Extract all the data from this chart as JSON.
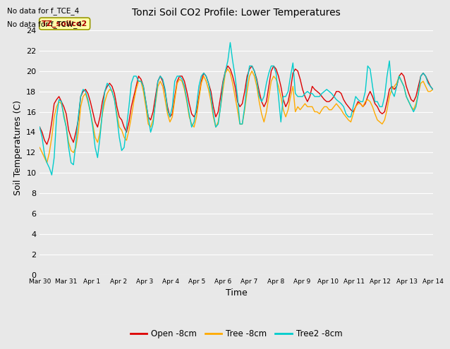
{
  "title": "Tonzi Soil CO2 Profile: Lower Temperatures",
  "xlabel": "Time",
  "ylabel": "Soil Temperatures (C)",
  "corner_label": "TZ_soilco2",
  "top_left_text": [
    "No data for f_TCE_4",
    "No data for f_TCW_4"
  ],
  "ylim": [
    0,
    25
  ],
  "yticks": [
    0,
    2,
    4,
    6,
    8,
    10,
    12,
    14,
    16,
    18,
    20,
    22,
    24
  ],
  "xtick_labels": [
    "Mar 30",
    "Mar 31",
    "Apr 1",
    "Apr 2",
    "Apr 3",
    "Apr 4",
    "Apr 5",
    "Apr 6",
    "Apr 7",
    "Apr 8",
    "Apr 9",
    "Apr 10",
    "Apr 11",
    "Apr 12",
    "Apr 13",
    "Apr 14"
  ],
  "bg_color": "#e8e8e8",
  "fig_color": "#e8e8e8",
  "grid_color": "#ffffff",
  "line_colors": {
    "open": "#dd0000",
    "tree": "#ffaa00",
    "tree2": "#00cccc"
  },
  "legend_labels": [
    "Open -8cm",
    "Tree -8cm",
    "Tree2 -8cm"
  ],
  "open_data": [
    14.5,
    14.0,
    13.2,
    12.8,
    13.5,
    15.0,
    16.8,
    17.2,
    17.5,
    17.0,
    16.5,
    15.8,
    14.2,
    13.5,
    13.0,
    14.0,
    15.2,
    17.5,
    18.0,
    18.2,
    17.8,
    17.0,
    16.0,
    15.0,
    14.5,
    15.5,
    17.0,
    18.0,
    18.5,
    18.8,
    18.5,
    17.8,
    16.5,
    15.5,
    15.2,
    14.5,
    14.0,
    15.0,
    16.5,
    17.5,
    18.5,
    19.5,
    19.2,
    18.5,
    17.0,
    15.5,
    15.2,
    16.0,
    17.5,
    19.0,
    19.5,
    19.0,
    18.0,
    16.5,
    15.5,
    15.8,
    17.5,
    19.0,
    19.5,
    19.5,
    19.0,
    18.0,
    16.8,
    15.8,
    15.5,
    16.0,
    17.5,
    19.0,
    19.8,
    19.5,
    18.8,
    18.0,
    16.5,
    15.5,
    16.0,
    17.5,
    19.0,
    20.0,
    20.5,
    20.2,
    19.5,
    18.5,
    17.0,
    16.5,
    16.8,
    18.0,
    19.5,
    20.2,
    20.5,
    20.0,
    19.2,
    18.0,
    17.0,
    16.5,
    17.0,
    18.5,
    20.0,
    20.5,
    20.2,
    19.5,
    18.5,
    17.2,
    16.5,
    17.0,
    18.2,
    19.8,
    20.2,
    20.0,
    19.2,
    18.2,
    17.5,
    17.0,
    17.5,
    18.5,
    18.2,
    18.0,
    17.8,
    17.5,
    17.2,
    17.0,
    17.0,
    17.2,
    17.5,
    18.0,
    18.0,
    17.8,
    17.2,
    16.8,
    16.5,
    16.2,
    16.0,
    16.5,
    17.0,
    16.8,
    16.5,
    16.8,
    17.5,
    18.0,
    17.5,
    16.8,
    16.5,
    16.0,
    15.8,
    16.0,
    17.0,
    18.2,
    18.5,
    18.2,
    18.5,
    19.5,
    19.8,
    19.5,
    18.5,
    17.8,
    17.2,
    17.0,
    17.5,
    18.5,
    19.5,
    19.8,
    19.5,
    19.0,
    18.5,
    18.2
  ],
  "tree_data": [
    12.5,
    12.0,
    11.5,
    11.0,
    12.0,
    13.5,
    15.5,
    16.5,
    17.0,
    16.8,
    15.8,
    14.5,
    13.0,
    12.2,
    12.0,
    12.5,
    14.0,
    16.5,
    17.5,
    17.8,
    17.0,
    16.0,
    14.8,
    13.5,
    13.0,
    14.0,
    15.8,
    17.0,
    17.8,
    18.2,
    18.0,
    17.2,
    15.8,
    14.5,
    14.2,
    13.5,
    13.2,
    14.2,
    15.5,
    17.0,
    18.2,
    19.0,
    19.0,
    18.0,
    16.5,
    14.8,
    14.5,
    15.2,
    16.8,
    18.5,
    19.0,
    18.5,
    17.2,
    15.8,
    15.0,
    15.5,
    17.2,
    18.8,
    19.2,
    19.0,
    18.2,
    17.0,
    15.5,
    14.8,
    14.5,
    15.5,
    17.2,
    18.8,
    19.5,
    19.0,
    18.2,
    17.0,
    15.5,
    14.5,
    15.0,
    16.5,
    18.2,
    19.8,
    20.2,
    19.8,
    18.8,
    17.5,
    16.2,
    14.8,
    14.8,
    16.2,
    18.0,
    19.5,
    20.0,
    19.5,
    18.5,
    17.0,
    15.8,
    15.0,
    16.0,
    17.5,
    19.0,
    19.5,
    19.2,
    18.5,
    17.5,
    16.2,
    15.5,
    16.2,
    17.5,
    18.5,
    16.0,
    16.5,
    16.2,
    16.5,
    16.8,
    16.5,
    16.5,
    16.5,
    16.0,
    16.0,
    15.8,
    16.2,
    16.5,
    16.5,
    16.2,
    16.2,
    16.5,
    16.8,
    16.5,
    16.2,
    15.8,
    15.5,
    15.2,
    15.0,
    15.8,
    16.5,
    16.8,
    16.8,
    16.5,
    17.0,
    17.2,
    17.0,
    16.5,
    15.8,
    15.2,
    15.0,
    14.8,
    15.2,
    16.2,
    17.5,
    18.2,
    18.5,
    18.8,
    19.5,
    19.0,
    18.5,
    17.5,
    17.0,
    16.5,
    16.2,
    16.8,
    17.8,
    18.8,
    19.0,
    18.5,
    18.0,
    18.0,
    18.2
  ],
  "tree2_data": [
    14.5,
    13.5,
    11.8,
    11.0,
    10.5,
    9.8,
    11.5,
    15.5,
    17.2,
    17.0,
    15.5,
    14.5,
    12.5,
    11.0,
    10.8,
    13.0,
    15.5,
    17.5,
    18.2,
    18.0,
    17.2,
    16.0,
    14.5,
    12.5,
    11.5,
    13.5,
    16.0,
    18.0,
    18.8,
    18.5,
    18.0,
    17.2,
    15.5,
    13.5,
    12.2,
    12.5,
    14.5,
    16.5,
    18.8,
    19.5,
    19.5,
    19.0,
    19.0,
    18.5,
    17.0,
    15.5,
    14.0,
    14.8,
    17.0,
    19.0,
    19.5,
    19.2,
    18.2,
    16.2,
    15.5,
    16.5,
    19.0,
    19.5,
    19.5,
    19.2,
    18.5,
    17.2,
    15.8,
    14.5,
    15.0,
    16.5,
    18.5,
    19.5,
    19.8,
    19.5,
    18.8,
    17.5,
    15.8,
    14.5,
    14.8,
    16.5,
    18.8,
    20.0,
    21.0,
    22.8,
    21.0,
    19.5,
    17.5,
    14.8,
    14.8,
    16.5,
    19.0,
    20.5,
    20.5,
    20.0,
    19.0,
    17.5,
    17.0,
    17.5,
    18.8,
    19.8,
    20.5,
    20.5,
    19.8,
    17.5,
    15.0,
    17.5,
    17.5,
    18.0,
    19.5,
    20.8,
    17.8,
    17.5,
    17.5,
    17.5,
    17.8,
    18.0,
    17.8,
    17.8,
    17.5,
    17.5,
    17.5,
    17.8,
    18.0,
    18.2,
    18.0,
    17.8,
    17.5,
    17.2,
    17.0,
    16.8,
    16.5,
    15.8,
    15.5,
    15.5,
    16.5,
    17.5,
    17.2,
    17.0,
    17.0,
    18.0,
    20.5,
    20.2,
    18.5,
    17.0,
    17.0,
    16.5,
    16.5,
    17.5,
    19.5,
    21.0,
    18.0,
    17.5,
    18.5,
    19.5,
    19.0,
    18.5,
    17.5,
    17.0,
    16.5,
    16.0,
    16.5,
    17.8,
    19.5,
    19.8,
    19.5,
    18.8,
    18.5,
    18.2
  ]
}
